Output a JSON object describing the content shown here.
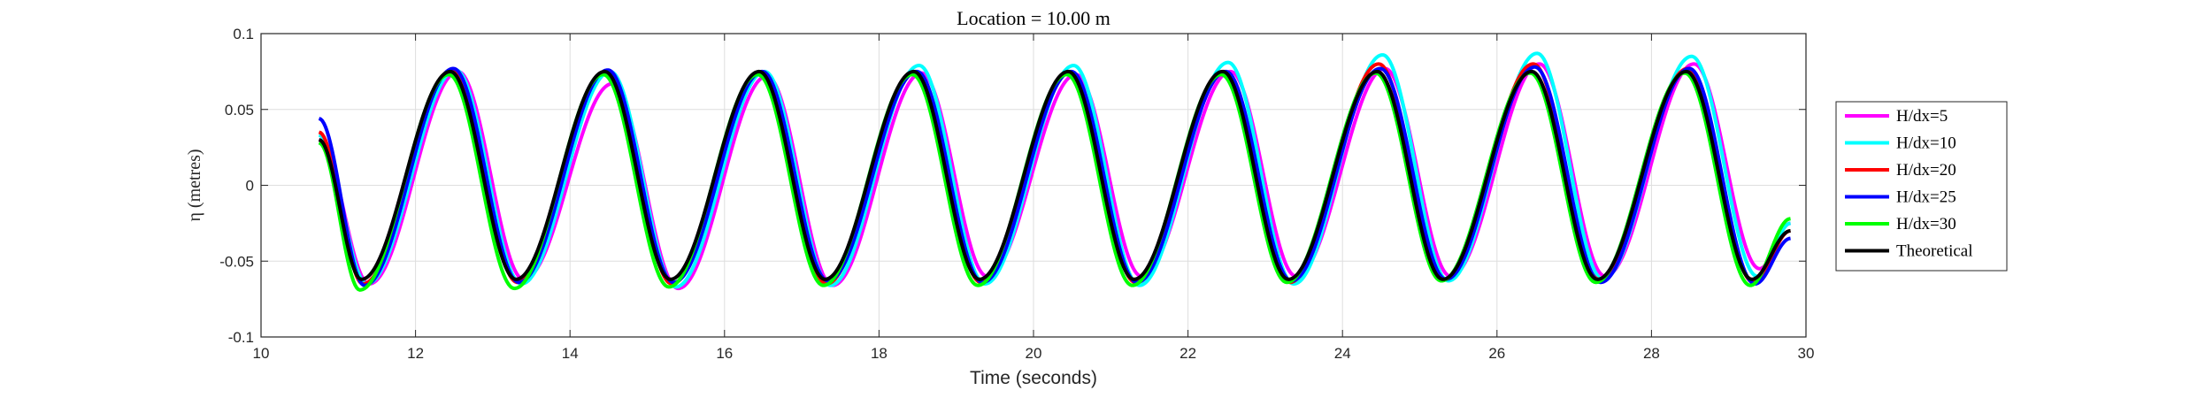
{
  "chart_data": {
    "type": "line",
    "title": "Location = 10.00 m",
    "xlabel": "Time (seconds)",
    "ylabel": "η (metres)",
    "xlim": [
      10,
      30
    ],
    "ylim": [
      -0.1,
      0.1
    ],
    "xticks": [
      10,
      12,
      14,
      16,
      18,
      20,
      22,
      24,
      26,
      28,
      30
    ],
    "xtick_labels": [
      "10",
      "12",
      "14",
      "16",
      "18",
      "20",
      "22",
      "24",
      "26",
      "28",
      "30"
    ],
    "yticks": [
      0.1,
      0.05,
      0,
      -0.05,
      -0.1
    ],
    "ytick_labels": [
      "0.1",
      "0.05",
      "0",
      "-0.05",
      "-0.1"
    ],
    "grid": true,
    "legend_position": "right",
    "x_range": [
      10.75,
      29.8
    ],
    "wave_period_s": 2.0,
    "series": [
      {
        "name": "H/dx=5",
        "color": "#ff00ff",
        "phase_lag_s": 0.1,
        "troughs": [
          -0.065,
          -0.062,
          -0.068,
          -0.066,
          -0.06,
          -0.06,
          -0.06,
          -0.06,
          -0.06,
          -0.055,
          -0.06
        ],
        "crests": [
          0.075,
          0.067,
          0.072,
          0.074,
          0.073,
          0.075,
          0.077,
          0.08,
          0.08,
          0.08
        ],
        "start": 0.03,
        "end": -0.025
      },
      {
        "name": "H/dx=10",
        "color": "#00ffff",
        "phase_lag_s": 0.07,
        "troughs": [
          -0.065,
          -0.065,
          -0.067,
          -0.066,
          -0.065,
          -0.066,
          -0.065,
          -0.063,
          -0.062,
          -0.06,
          -0.065
        ],
        "crests": [
          0.076,
          0.075,
          0.075,
          0.079,
          0.079,
          0.081,
          0.086,
          0.087,
          0.085
        ],
        "start": 0.033,
        "end": -0.025
      },
      {
        "name": "H/dx=20",
        "color": "#ff0000",
        "phase_lag_s": 0.02,
        "troughs": [
          -0.065,
          -0.064,
          -0.065,
          -0.065,
          -0.064,
          -0.064,
          -0.064,
          -0.062,
          -0.062,
          -0.064,
          -0.066
        ],
        "crests": [
          0.076,
          0.075,
          0.074,
          0.075,
          0.075,
          0.075,
          0.08,
          0.08,
          0.077
        ],
        "start": 0.035,
        "end": -0.03
      },
      {
        "name": "H/dx=25",
        "color": "#0000ff",
        "phase_lag_s": 0.04,
        "troughs": [
          -0.066,
          -0.064,
          -0.064,
          -0.063,
          -0.064,
          -0.064,
          -0.063,
          -0.062,
          -0.064,
          -0.065,
          -0.069
        ],
        "crests": [
          0.077,
          0.076,
          0.075,
          0.075,
          0.075,
          0.075,
          0.077,
          0.078,
          0.077
        ],
        "start": 0.044,
        "end": -0.035
      },
      {
        "name": "H/dx=30",
        "color": "#00ff00",
        "phase_lag_s": -0.02,
        "troughs": [
          -0.069,
          -0.068,
          -0.067,
          -0.066,
          -0.066,
          -0.066,
          -0.064,
          -0.063,
          -0.064,
          -0.066,
          -0.063
        ],
        "crests": [
          0.073,
          0.073,
          0.073,
          0.073,
          0.073,
          0.073,
          0.074,
          0.074,
          0.074
        ],
        "start": 0.028,
        "end": -0.022
      },
      {
        "name": "Theoretical",
        "color": "#000000",
        "phase_lag_s": 0.0,
        "troughs": [
          -0.062,
          -0.062,
          -0.062,
          -0.062,
          -0.062,
          -0.062,
          -0.062,
          -0.062,
          -0.062,
          -0.062,
          -0.062
        ],
        "crests": [
          0.075,
          0.075,
          0.075,
          0.075,
          0.075,
          0.075,
          0.075,
          0.075,
          0.075
        ],
        "start": 0.03,
        "end": -0.03
      }
    ]
  }
}
